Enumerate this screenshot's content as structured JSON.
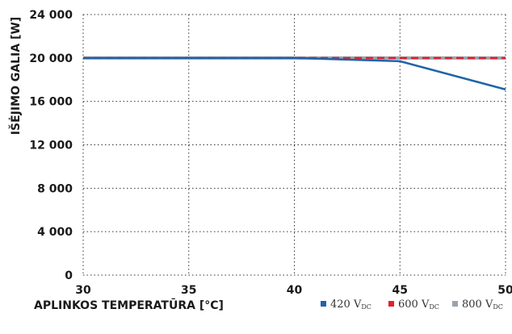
{
  "chart_data": {
    "type": "line",
    "xlabel": "APLINKOS TEMPERATŪRA [°C]",
    "ylabel": "IŠĖJIMO GALIA [W]",
    "x_ticks": [
      30,
      35,
      40,
      45,
      50
    ],
    "x_tick_labels": [
      "30",
      "35",
      "40",
      "45",
      "50"
    ],
    "y_ticks": [
      0,
      4000,
      8000,
      12000,
      16000,
      20000,
      24000
    ],
    "y_tick_labels": [
      "0",
      "4 000",
      "8 000",
      "12 000",
      "16 000",
      "20 000",
      "24 000"
    ],
    "xlim": [
      30,
      50
    ],
    "ylim": [
      0,
      24000
    ],
    "grid": true,
    "legend_position": "bottom-right",
    "series": [
      {
        "name": "420 V",
        "name_sub": "DC",
        "color": "#1f64a8",
        "dash": "solid",
        "x": [
          30,
          35,
          40,
          45,
          50
        ],
        "y": [
          20000,
          20000,
          20000,
          19700,
          17100
        ]
      },
      {
        "name": "600 V",
        "name_sub": "DC",
        "color": "#e0202e",
        "dash": "dashed",
        "x": [
          30,
          35,
          40,
          45,
          50
        ],
        "y": [
          20000,
          20000,
          20000,
          20000,
          20000
        ]
      },
      {
        "name": "800 V",
        "name_sub": "DC",
        "color": "#9aa3ad",
        "dash": "solid",
        "x": [
          30,
          35,
          40,
          45,
          50
        ],
        "y": [
          20000,
          20000,
          20000,
          20000,
          20000
        ]
      }
    ]
  }
}
